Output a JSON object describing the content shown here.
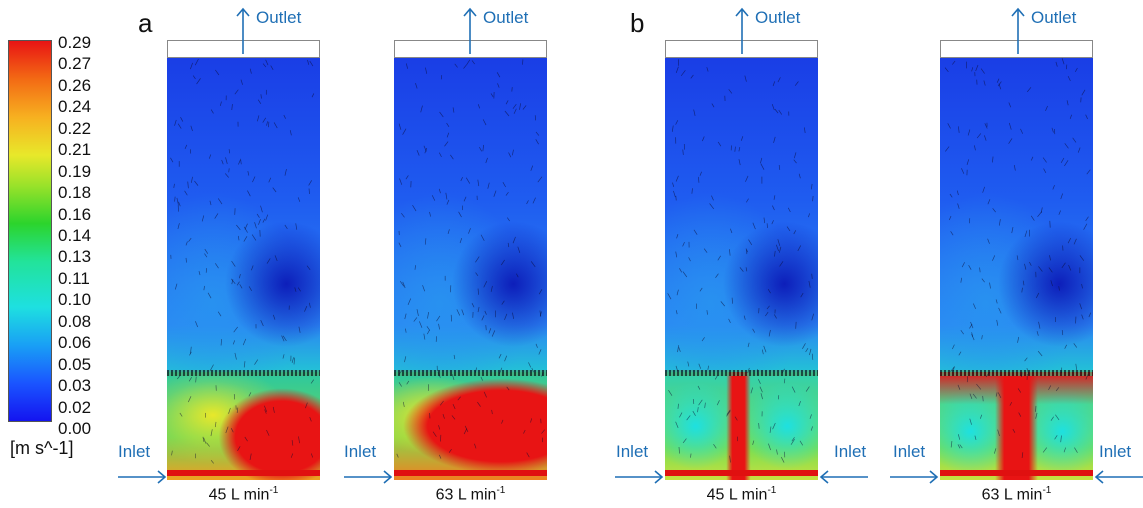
{
  "colorbar": {
    "ticks": [
      "0.29",
      "0.27",
      "0.26",
      "0.24",
      "0.22",
      "0.21",
      "0.19",
      "0.18",
      "0.16",
      "0.14",
      "0.13",
      "0.11",
      "0.10",
      "0.08",
      "0.06",
      "0.05",
      "0.03",
      "0.02",
      "0.00"
    ],
    "unit": "[m s^-1]",
    "colors": [
      "#1414f0",
      "#1a55ff",
      "#19a0f5",
      "#1ee0e0",
      "#22e39a",
      "#2cd42c",
      "#9ae22a",
      "#e8e82a",
      "#f7b020",
      "#f36a14",
      "#e81414"
    ]
  },
  "groups": [
    {
      "letter": "a"
    },
    {
      "letter": "b"
    }
  ],
  "labels": {
    "outlet": "Outlet",
    "inlet": "Inlet"
  },
  "panels": [
    {
      "caption_main": "45 L min",
      "caption_sup": "-1"
    },
    {
      "caption_main": "63 L min",
      "caption_sup": "-1"
    },
    {
      "caption_main": "45 L min",
      "caption_sup": "-1"
    },
    {
      "caption_main": "63 L min",
      "caption_sup": "-1"
    }
  ]
}
